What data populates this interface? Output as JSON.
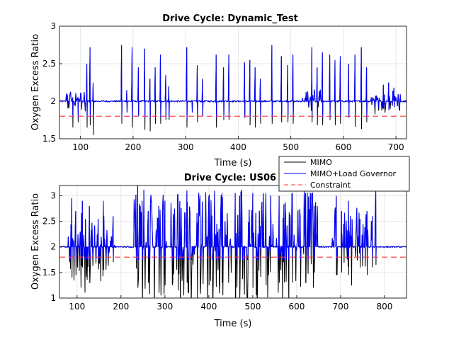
{
  "chart_data": [
    {
      "type": "line",
      "title": "Drive Cycle: Dynamic_Test",
      "xlabel": "Time (s)",
      "ylabel": "Oxygen Excess Ratio",
      "xlim": [
        60,
        720
      ],
      "ylim": [
        1.5,
        3
      ],
      "xticks": [
        100,
        200,
        300,
        400,
        500,
        600,
        700
      ],
      "yticks": [
        1.5,
        2,
        2.5,
        3
      ],
      "grid": true,
      "baseline": 2.0,
      "spikes": [
        [
          85,
          2.05,
          1.65
        ],
        [
          95,
          2.05,
          1.72
        ],
        [
          112,
          2.5,
          1.65
        ],
        [
          118,
          2.72,
          1.68
        ],
        [
          124,
          2.25,
          1.55
        ],
        [
          178,
          2.75,
          1.7
        ],
        [
          188,
          2.15,
          1.85
        ],
        [
          198,
          2.72,
          1.65
        ],
        [
          210,
          2.45,
          1.8
        ],
        [
          222,
          2.7,
          1.62
        ],
        [
          232,
          2.3,
          1.6
        ],
        [
          242,
          2.45,
          1.7
        ],
        [
          252,
          2.62,
          1.7
        ],
        [
          262,
          2.35,
          1.75
        ],
        [
          268,
          2.2,
          1.75
        ],
        [
          302,
          2.72,
          1.65
        ],
        [
          312,
          2.0,
          1.85
        ],
        [
          322,
          2.48,
          1.72
        ],
        [
          332,
          2.3,
          1.8
        ],
        [
          358,
          2.62,
          1.65
        ],
        [
          372,
          2.45,
          1.75
        ],
        [
          382,
          2.62,
          1.75
        ],
        [
          412,
          2.52,
          1.78
        ],
        [
          422,
          2.55,
          1.68
        ],
        [
          432,
          2.45,
          1.65
        ],
        [
          442,
          2.3,
          1.7
        ],
        [
          464,
          2.75,
          1.7
        ],
        [
          482,
          2.6,
          1.72
        ],
        [
          494,
          2.48,
          1.72
        ],
        [
          504,
          2.62,
          1.7
        ],
        [
          540,
          2.72,
          1.72
        ],
        [
          550,
          2.45,
          1.68
        ],
        [
          560,
          2.65,
          1.68
        ],
        [
          574,
          2.62,
          1.75
        ],
        [
          584,
          2.55,
          1.68
        ],
        [
          594,
          2.6,
          1.7
        ],
        [
          610,
          2.5,
          1.78
        ],
        [
          622,
          2.62,
          1.66
        ],
        [
          634,
          2.72,
          1.63
        ],
        [
          644,
          2.45,
          1.72
        ],
        [
          676,
          2.22,
          1.9
        ],
        [
          686,
          2.25,
          1.88
        ],
        [
          696,
          2.18,
          1.92
        ]
      ],
      "series": [
        {
          "name": "MIMO",
          "color": "#000000"
        },
        {
          "name": "MIMO+Load Governor",
          "color": "#0000ff"
        },
        {
          "name": "Constraint",
          "color": "#ff3333",
          "value": 1.8,
          "style": "dashed"
        }
      ]
    },
    {
      "type": "line",
      "title": "Drive Cycle: US06",
      "xlabel": "Time (s)",
      "ylabel": "Oxygen Excess Ratio",
      "xlim": [
        60,
        850
      ],
      "ylim": [
        1,
        3.2
      ],
      "xticks": [
        100,
        200,
        300,
        400,
        500,
        600,
        700,
        800
      ],
      "yticks": [
        1,
        1.5,
        2,
        2.5,
        3
      ],
      "grid": true,
      "baseline": 2.0,
      "busy_regions": [
        [
          80,
          185,
          0.55
        ],
        [
          230,
          650,
          0.85
        ],
        [
          680,
          780,
          0.6
        ]
      ],
      "spikes": [
        [
          88,
          2.95,
          1.4
        ],
        [
          97,
          2.7,
          1.45
        ],
        [
          112,
          2.9,
          1.6
        ],
        [
          128,
          2.8,
          1.55
        ],
        [
          148,
          2.55,
          1.7
        ],
        [
          160,
          2.9,
          1.55
        ],
        [
          182,
          2.6,
          1.7
        ],
        [
          238,
          3.2,
          1.2
        ],
        [
          248,
          2.9,
          1.4
        ],
        [
          262,
          2.7,
          1.3
        ],
        [
          286,
          2.8,
          1.1
        ],
        [
          300,
          2.9,
          1.25
        ],
        [
          330,
          3.0,
          1.15
        ],
        [
          350,
          3.1,
          1.3
        ],
        [
          380,
          3.0,
          1.2
        ],
        [
          400,
          3.0,
          1.25
        ],
        [
          430,
          3.05,
          1.3
        ],
        [
          460,
          3.05,
          1.05
        ],
        [
          470,
          3.0,
          1.0
        ],
        [
          500,
          3.05,
          1.2
        ],
        [
          530,
          3.05,
          1.25
        ],
        [
          560,
          3.0,
          1.3
        ],
        [
          590,
          3.05,
          1.3
        ],
        [
          620,
          3.05,
          1.3
        ],
        [
          640,
          2.8,
          1.5
        ],
        [
          690,
          3.0,
          1.45
        ],
        [
          702,
          2.7,
          1.5
        ],
        [
          718,
          2.9,
          1.45
        ],
        [
          744,
          2.55,
          1.6
        ],
        [
          760,
          2.7,
          1.45
        ],
        [
          772,
          2.6,
          1.6
        ],
        [
          780,
          3.1,
          1.65
        ]
      ],
      "series": [
        {
          "name": "MIMO",
          "color": "#000000"
        },
        {
          "name": "MIMO+Load Governor",
          "color": "#0000ff"
        },
        {
          "name": "Constraint",
          "color": "#ff3333",
          "value": 1.8,
          "style": "dashed"
        }
      ]
    }
  ],
  "legend": {
    "items": [
      {
        "label": "MIMO",
        "color": "#000000",
        "style": "solid"
      },
      {
        "label": "MIMO+Load Governor",
        "color": "#0000ff",
        "style": "solid"
      },
      {
        "label": "Constraint",
        "color": "#ff3333",
        "style": "dashed"
      }
    ]
  }
}
